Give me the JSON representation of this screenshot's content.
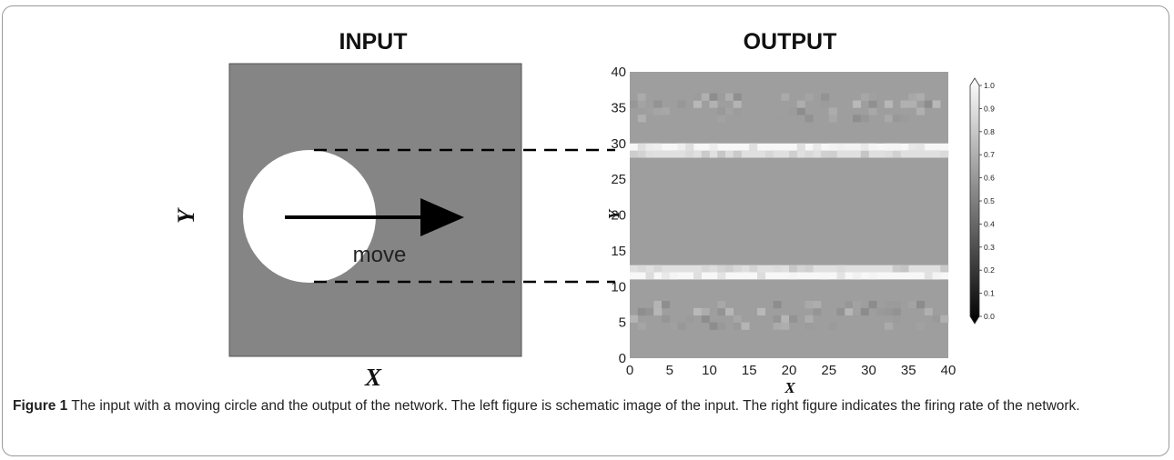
{
  "input_panel": {
    "title": "INPUT",
    "x_label": "X",
    "y_label": "Y",
    "annotation": "move",
    "colors": {
      "background": "#858585",
      "circle": "#ffffff",
      "arrow": "#000000"
    }
  },
  "output_panel": {
    "title": "OUTPUT",
    "colors": {
      "background": "#a9a9a9"
    }
  },
  "chart_data": {
    "type": "heatmap",
    "title": "",
    "xlabel": "X",
    "ylabel": "Y",
    "xlim": [
      0,
      40
    ],
    "ylim": [
      0,
      40
    ],
    "x_ticks": [
      0,
      5,
      10,
      15,
      20,
      25,
      30,
      35,
      40
    ],
    "y_ticks": [
      0,
      5,
      10,
      15,
      20,
      25,
      30,
      35,
      40
    ],
    "grid": false,
    "baseline_value": 0.62,
    "bands": [
      {
        "y_from": 28,
        "y_to": 29,
        "value": 0.88
      },
      {
        "y_from": 29,
        "y_to": 30,
        "value": 0.97
      },
      {
        "y_from": 11,
        "y_to": 12,
        "value": 0.97
      },
      {
        "y_from": 12,
        "y_to": 13,
        "value": 0.88
      }
    ],
    "colorbar": {
      "range": [
        0.0,
        1.0
      ],
      "ticks": [
        "0.0",
        "0.1",
        "0.2",
        "0.3",
        "0.4",
        "0.5",
        "0.6",
        "0.7",
        "0.8",
        "0.9",
        "1.0"
      ]
    }
  },
  "caption": {
    "label": "Figure 1",
    "text": " The input with a moving circle and the output of the network. The left figure is schematic image of the input. The right figure indicates the firing rate of the network."
  }
}
